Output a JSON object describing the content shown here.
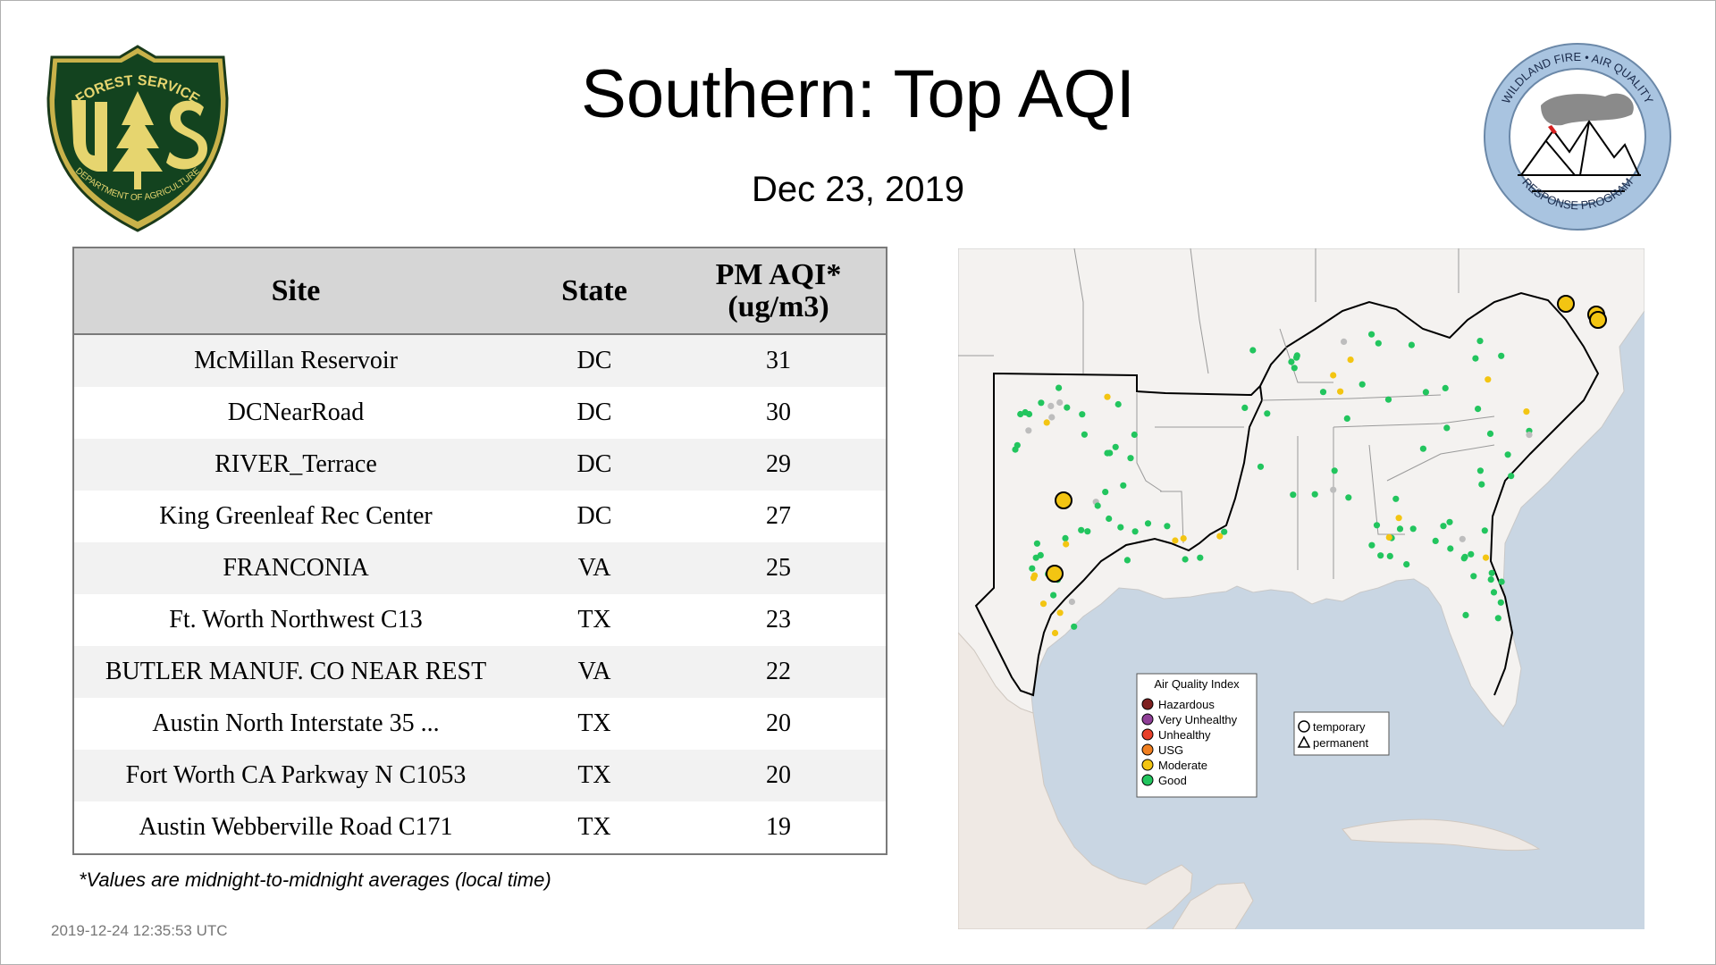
{
  "title": "Southern: Top AQI",
  "date": "Dec 23, 2019",
  "logos": {
    "forest_service": {
      "top_text": "FOREST SERVICE",
      "letters": "US",
      "bottom_text": "DEPARTMENT OF AGRICULTURE"
    },
    "wildland_fire": {
      "top_text": "WILDLAND FIRE • AIR QUALITY",
      "bottom_text": "RESPONSE PROGRAM"
    }
  },
  "table": {
    "headers": {
      "site": "Site",
      "state": "State",
      "aqi_line1": "PM AQI*",
      "aqi_line2": "(ug/m3)"
    },
    "rows": [
      {
        "site": "McMillan Reservoir",
        "state": "DC",
        "aqi": "31"
      },
      {
        "site": "DCNearRoad",
        "state": "DC",
        "aqi": "30"
      },
      {
        "site": "RIVER_Terrace",
        "state": "DC",
        "aqi": "29"
      },
      {
        "site": "King Greenleaf Rec Center",
        "state": "DC",
        "aqi": "27"
      },
      {
        "site": "FRANCONIA",
        "state": "VA",
        "aqi": "25"
      },
      {
        "site": "Ft. Worth Northwest C13",
        "state": "TX",
        "aqi": "23"
      },
      {
        "site": "BUTLER MANUF. CO NEAR REST",
        "state": "VA",
        "aqi": "22"
      },
      {
        "site": "Austin North Interstate 35 ...",
        "state": "TX",
        "aqi": "20"
      },
      {
        "site": "Fort Worth CA Parkway N C1053",
        "state": "TX",
        "aqi": "20"
      },
      {
        "site": "Austin Webberville Road C171",
        "state": "TX",
        "aqi": "19"
      }
    ]
  },
  "footnote": "*Values are midnight-to-midnight averages (local time)",
  "timestamp": "2019-12-24 12:35:53 UTC",
  "legend": {
    "title": "Air Quality Index",
    "items": [
      {
        "label": "Hazardous",
        "color": "#7e2020"
      },
      {
        "label": "Very Unhealthy",
        "color": "#8f3f97"
      },
      {
        "label": "Unhealthy",
        "color": "#e8402a"
      },
      {
        "label": "USG",
        "color": "#f07f20"
      },
      {
        "label": "Moderate",
        "color": "#f3c512"
      },
      {
        "label": "Good",
        "color": "#22c55e"
      }
    ],
    "shapes": [
      {
        "label": "temporary",
        "shape": "circle"
      },
      {
        "label": "permanent",
        "shape": "triangle"
      }
    ]
  },
  "colors": {
    "ocean": "#c9d6e3",
    "land": "#f4f2f0",
    "no_data": "#bdbdbd"
  }
}
